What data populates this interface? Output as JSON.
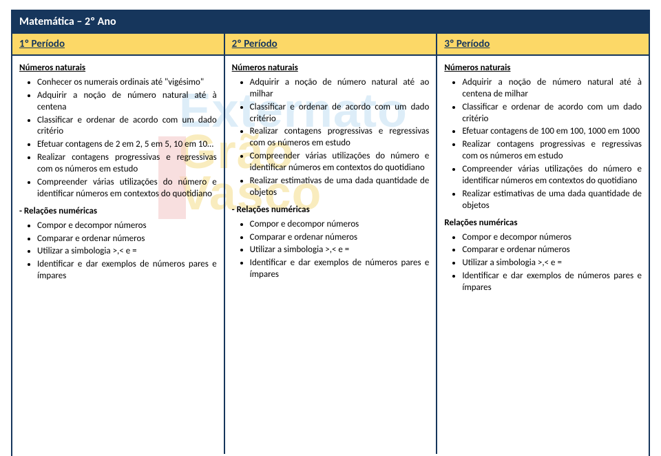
{
  "colors": {
    "navy": "#16365c",
    "yellow": "#fcd867",
    "white": "#ffffff",
    "black": "#000000",
    "wm_blue": "#7dbbe6",
    "wm_yellow": "#e8b800",
    "wm_red": "#d32f2f"
  },
  "title": "Matemática – 2º Ano",
  "headers": [
    "1º Período",
    "2º Período",
    "3º Período"
  ],
  "watermark": {
    "line1": "Externato",
    "line2": "Grão",
    "line3": "Vasco"
  },
  "col1": {
    "h1": "Números naturais",
    "items1": [
      "Conhecer os numerais ordinais até \"vigésimo\"",
      "Adquirir a noção de número natural até à centena",
      "Classificar e ordenar de acordo com um dado critério",
      "Efetuar contagens de 2 em 2, 5 em 5, 10 em 10…",
      "Realizar contagens progressivas e regressivas com os números em estudo",
      "Compreender várias utilizações do número e identificar números em contextos do quotidiano"
    ],
    "h2": "- Relações numéricas",
    "items2": [
      "Compor e decompor números",
      "Comparar e ordenar números",
      "Utilizar a simbologia >,< e =",
      "Identificar e dar exemplos de números pares e ímpares"
    ]
  },
  "col2": {
    "h1": "Números naturais",
    "items1": [
      "Adquirir a noção de número natural até ao milhar",
      "Classificar e ordenar de acordo com um dado critério",
      "Realizar contagens progressivas e regressivas com os números em estudo",
      "Compreender várias utilizações do número e identificar números em contextos do quotidiano",
      "Realizar estimativas de uma dada quantidade de objetos"
    ],
    "h2": "- Relações numéricas",
    "items2": [
      "Compor e decompor números",
      "Comparar e ordenar números",
      "Utilizar a simbologia >,< e =",
      "Identificar e dar exemplos de números pares e ímpares"
    ]
  },
  "col3": {
    "h1": "Números naturais",
    "items1": [
      "Adquirir a noção de número natural até à centena de milhar",
      "Classificar e ordenar de acordo com um dado critério",
      "Efetuar contagens de 100 em 100, 1000 em 1000",
      "Realizar contagens progressivas e regressivas com os números em estudo",
      "Compreender várias utilizações do número e identificar números em contextos do quotidiano",
      "Realizar estimativas de uma dada quantidade de objetos"
    ],
    "h2": "Relações numéricas",
    "items2": [
      "Compor e decompor números",
      "Comparar e ordenar números",
      "Utilizar a simbologia >,< e =",
      "Identificar e dar exemplos de números pares e ímpares"
    ]
  }
}
